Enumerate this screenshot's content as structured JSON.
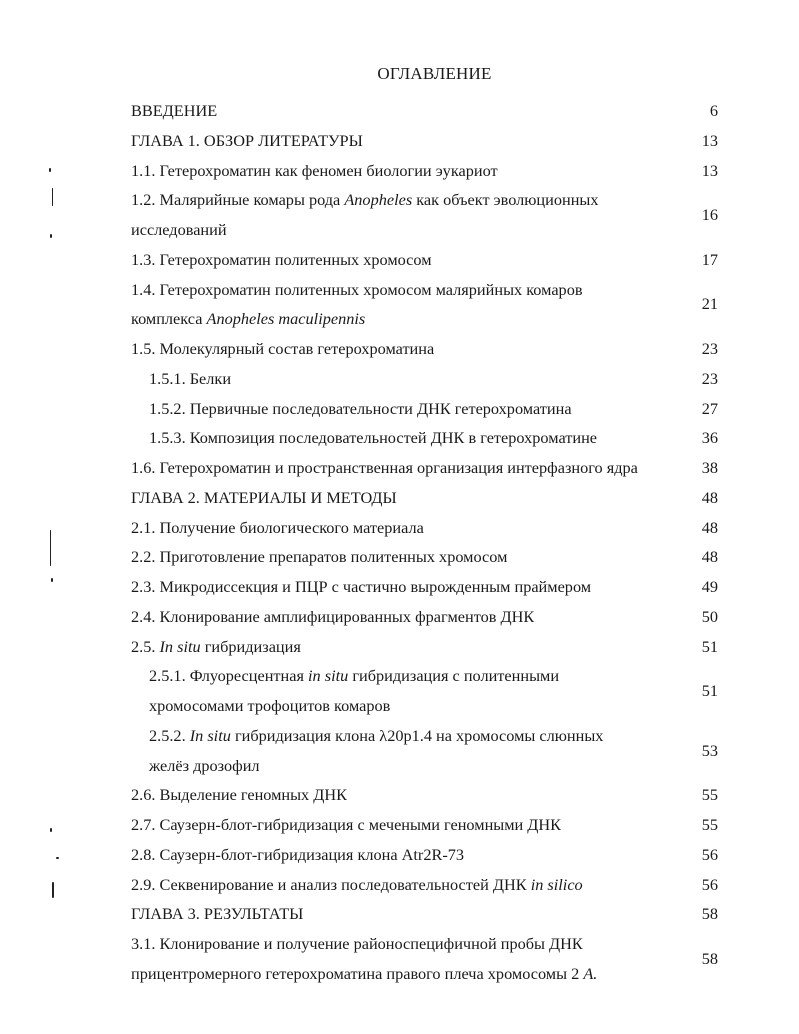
{
  "title": "ОГЛАВЛЕНИЕ",
  "entries": [
    {
      "parts": [
        {
          "t": "ВВЕДЕНИЕ"
        }
      ],
      "page": "6"
    },
    {
      "parts": [
        {
          "t": "ГЛАВА 1. ОБЗОР ЛИТЕРАТУРЫ"
        }
      ],
      "page": "13"
    },
    {
      "parts": [
        {
          "t": "1.1. Гетерохроматин как феномен биологии эукариот"
        }
      ],
      "page": "13"
    },
    {
      "parts": [
        {
          "t": "1.2. Малярийные комары рода "
        },
        {
          "t": "Anopheles",
          "i": true
        },
        {
          "t": " как объект эволюционных"
        },
        {
          "br": true
        },
        {
          "t": "исследований"
        }
      ],
      "page": "16"
    },
    {
      "parts": [
        {
          "t": "1.3. Гетерохроматин политенных хромосом"
        }
      ],
      "page": "17"
    },
    {
      "parts": [
        {
          "t": "1.4. Гетерохроматин политенных хромосом малярийных комаров"
        },
        {
          "br": true
        },
        {
          "t": "комплекса "
        },
        {
          "t": "Anopheles maculipennis",
          "i": true
        }
      ],
      "page": "21"
    },
    {
      "parts": [
        {
          "t": "1.5. Молекулярный состав гетерохроматина"
        }
      ],
      "page": "23"
    },
    {
      "parts": [
        {
          "t": "1.5.1. Белки"
        }
      ],
      "page": "23",
      "indent": true
    },
    {
      "parts": [
        {
          "t": "1.5.2. Первичные последовательности ДНК гетерохроматина"
        }
      ],
      "page": "27",
      "indent": true
    },
    {
      "parts": [
        {
          "t": "1.5.3. Композиция последовательностей ДНК в гетерохроматине"
        }
      ],
      "page": "36",
      "indent": true
    },
    {
      "parts": [
        {
          "t": "1.6. Гетерохроматин и пространственная организация интерфазного ядра"
        }
      ],
      "page": "38"
    },
    {
      "parts": [
        {
          "t": "ГЛАВА 2. МАТЕРИАЛЫ И МЕТОДЫ"
        }
      ],
      "page": "48"
    },
    {
      "parts": [
        {
          "t": "2.1. Получение биологического материала"
        }
      ],
      "page": "48"
    },
    {
      "parts": [
        {
          "t": "2.2. Приготовление препаратов политенных хромосом"
        }
      ],
      "page": "48"
    },
    {
      "parts": [
        {
          "t": "2.3. Микродиссекция и ПЦР с частично вырожденным праймером"
        }
      ],
      "page": "49"
    },
    {
      "parts": [
        {
          "t": "2.4. Клонирование амплифицированных фрагментов ДНК"
        }
      ],
      "page": "50"
    },
    {
      "parts": [
        {
          "t": "2.5. "
        },
        {
          "t": "In situ",
          "i": true
        },
        {
          "t": " гибридизация"
        }
      ],
      "page": "51"
    },
    {
      "parts": [
        {
          "t": "2.5.1. Флуоресцентная "
        },
        {
          "t": "in situ",
          "i": true
        },
        {
          "t": " гибридизация с политенными"
        },
        {
          "br": true
        },
        {
          "t": "хромосомами трофоцитов комаров"
        }
      ],
      "page": "51",
      "indent": true
    },
    {
      "parts": [
        {
          "t": "2.5.2. "
        },
        {
          "t": "In situ",
          "i": true
        },
        {
          "t": " гибридизация клона λ20p1.4 на хромосомы слюнных"
        },
        {
          "br": true
        },
        {
          "t": "желёз дрозофил"
        }
      ],
      "page": "53",
      "indent": true
    },
    {
      "parts": [
        {
          "t": "2.6. Выделение геномных ДНК"
        }
      ],
      "page": "55"
    },
    {
      "parts": [
        {
          "t": "2.7. Саузерн-блот-гибридизация с мечеными геномными ДНК"
        }
      ],
      "page": "55"
    },
    {
      "parts": [
        {
          "t": "2.8. Саузерн-блот-гибридизация клона Atr2R-73"
        }
      ],
      "page": "56"
    },
    {
      "parts": [
        {
          "t": "2.9. Секвенирование и анализ последовательностей ДНК "
        },
        {
          "t": "in silico",
          "i": true
        }
      ],
      "page": "56"
    },
    {
      "parts": [
        {
          "t": "ГЛАВА 3. РЕЗУЛЬТАТЫ"
        }
      ],
      "page": "58"
    },
    {
      "parts": [
        {
          "t": "3.1. Клонирование и получение районоспецифичной пробы ДНК"
        },
        {
          "br": true
        },
        {
          "t": "прицентромерного гетерохроматина правого плеча хромосомы 2 "
        },
        {
          "t": "A.",
          "i": true
        }
      ],
      "page": "58"
    }
  ]
}
